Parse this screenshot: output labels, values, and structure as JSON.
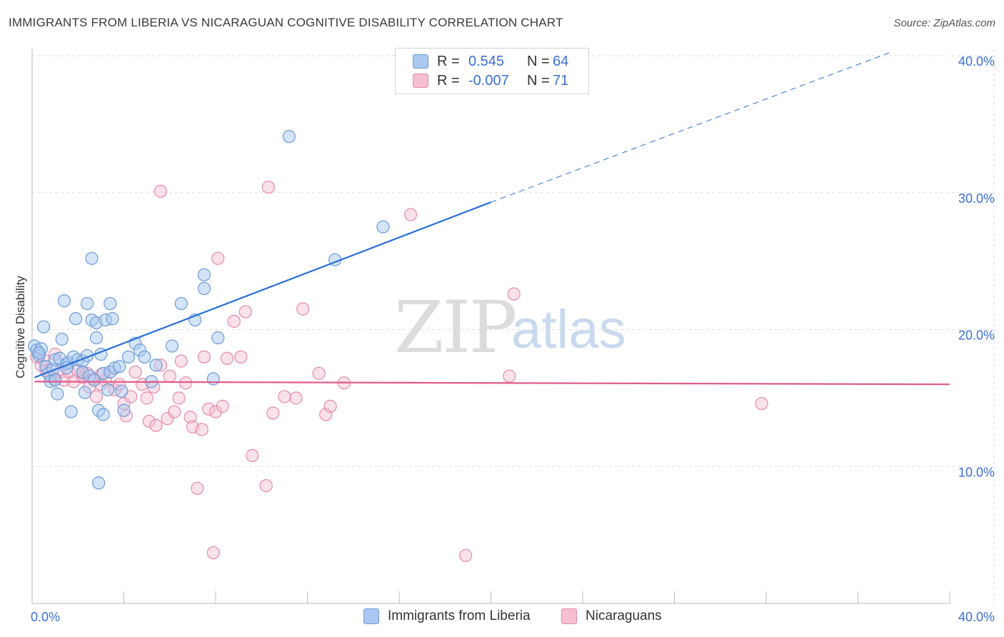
{
  "title": "IMMIGRANTS FROM LIBERIA VS NICARAGUAN COGNITIVE DISABILITY CORRELATION CHART",
  "source": "Source: ZipAtlas.com",
  "watermark": {
    "zip": "ZIP",
    "atlas": "atlas"
  },
  "colors": {
    "blue_fill": "#aac9f0",
    "blue_stroke": "#6b9bd8",
    "blue_line": "#2a6fd6",
    "pink_fill": "#f5bfd0",
    "pink_stroke": "#e68aa8",
    "pink_line": "#e05c8a",
    "grid": "#dddddd",
    "axis_label": "#3b6fd4"
  },
  "legend": {
    "series1": {
      "r_label": "R =",
      "r_value": "0.545",
      "n_label": "N =",
      "n_value": "64"
    },
    "series2": {
      "r_label": "R =",
      "r_value": "-0.007",
      "n_label": "N =",
      "n_value": "71"
    }
  },
  "bottom_legend": {
    "series1": "Immigrants from Liberia",
    "series2": "Nicaraguans"
  },
  "chart_data": {
    "type": "scatter",
    "title": "IMMIGRANTS FROM LIBERIA VS NICARAGUAN COGNITIVE DISABILITY CORRELATION CHART",
    "xlabel": "",
    "ylabel": "Cognitive Disability",
    "xlim": [
      0,
      40
    ],
    "ylim": [
      0,
      40
    ],
    "x_tick_labels": [
      "0.0%",
      "40.0%"
    ],
    "y_ticks": [
      {
        "value": 10,
        "label": "10.0%"
      },
      {
        "value": 20,
        "label": "20.0%"
      },
      {
        "value": 30,
        "label": "30.0%"
      },
      {
        "value": 40,
        "label": "40.0%"
      }
    ],
    "series": [
      {
        "name": "Immigrants from Liberia",
        "color": "blue",
        "trend": {
          "x": [
            0.1,
            20.0
          ],
          "y": [
            16.5,
            29.3
          ],
          "extend_to": [
            37.5,
            40.3
          ]
        },
        "points": [
          [
            0.1,
            18.8
          ],
          [
            0.2,
            18.5
          ],
          [
            0.3,
            18.1
          ],
          [
            0.4,
            18.6
          ],
          [
            0.5,
            20.2
          ],
          [
            0.6,
            17.3
          ],
          [
            0.7,
            16.8
          ],
          [
            0.8,
            16.2
          ],
          [
            0.9,
            17.1
          ],
          [
            1.0,
            17.8
          ],
          [
            1.1,
            15.3
          ],
          [
            1.2,
            17.9
          ],
          [
            1.3,
            19.3
          ],
          [
            1.4,
            22.1
          ],
          [
            1.5,
            17.5
          ],
          [
            1.6,
            17.6
          ],
          [
            1.5,
            17.2
          ],
          [
            1.7,
            14.0
          ],
          [
            1.8,
            18.0
          ],
          [
            1.9,
            20.8
          ],
          [
            2.0,
            17.8
          ],
          [
            2.2,
            17.7
          ],
          [
            2.3,
            15.4
          ],
          [
            2.4,
            18.1
          ],
          [
            2.2,
            16.9
          ],
          [
            2.4,
            21.9
          ],
          [
            2.5,
            16.6
          ],
          [
            2.6,
            20.7
          ],
          [
            2.6,
            25.2
          ],
          [
            2.7,
            16.3
          ],
          [
            2.8,
            20.5
          ],
          [
            2.8,
            19.4
          ],
          [
            2.9,
            14.1
          ],
          [
            3.0,
            18.2
          ],
          [
            3.1,
            16.8
          ],
          [
            3.2,
            20.7
          ],
          [
            3.1,
            13.8
          ],
          [
            3.3,
            15.6
          ],
          [
            3.4,
            16.9
          ],
          [
            3.4,
            21.9
          ],
          [
            3.5,
            20.8
          ],
          [
            3.6,
            17.2
          ],
          [
            3.8,
            17.3
          ],
          [
            3.9,
            15.5
          ],
          [
            4.0,
            14.1
          ],
          [
            4.2,
            18.0
          ],
          [
            4.5,
            19.0
          ],
          [
            4.7,
            18.5
          ],
          [
            4.9,
            18.0
          ],
          [
            5.2,
            16.2
          ],
          [
            5.4,
            17.4
          ],
          [
            6.1,
            18.8
          ],
          [
            6.5,
            21.9
          ],
          [
            7.1,
            20.7
          ],
          [
            7.5,
            24.0
          ],
          [
            7.5,
            23.0
          ],
          [
            7.9,
            16.4
          ],
          [
            8.1,
            19.4
          ],
          [
            11.2,
            34.1
          ],
          [
            13.2,
            25.1
          ],
          [
            15.3,
            27.5
          ],
          [
            2.9,
            8.8
          ],
          [
            0.3,
            18.3
          ],
          [
            1.0,
            16.3
          ]
        ]
      },
      {
        "name": "Nicaraguans",
        "color": "pink",
        "trend": {
          "x": [
            0.1,
            40.0
          ],
          "y": [
            16.2,
            16.0
          ]
        },
        "points": [
          [
            0.2,
            18.0
          ],
          [
            0.4,
            17.4
          ],
          [
            0.6,
            17.0
          ],
          [
            0.8,
            16.6
          ],
          [
            1.0,
            18.2
          ],
          [
            1.2,
            16.9
          ],
          [
            1.4,
            16.3
          ],
          [
            1.6,
            16.9
          ],
          [
            1.8,
            16.2
          ],
          [
            2.0,
            17.0
          ],
          [
            2.2,
            16.5
          ],
          [
            2.4,
            16.8
          ],
          [
            2.5,
            15.8
          ],
          [
            2.7,
            16.4
          ],
          [
            2.8,
            15.1
          ],
          [
            3.0,
            16.7
          ],
          [
            3.2,
            16.3
          ],
          [
            3.4,
            16.9
          ],
          [
            3.6,
            15.6
          ],
          [
            3.8,
            16.0
          ],
          [
            4.0,
            14.6
          ],
          [
            4.1,
            13.7
          ],
          [
            4.3,
            15.1
          ],
          [
            4.5,
            16.9
          ],
          [
            4.8,
            16.0
          ],
          [
            5.0,
            15.0
          ],
          [
            5.1,
            13.3
          ],
          [
            5.3,
            15.8
          ],
          [
            5.4,
            13.0
          ],
          [
            5.6,
            17.4
          ],
          [
            5.9,
            13.5
          ],
          [
            6.0,
            16.6
          ],
          [
            6.2,
            14.0
          ],
          [
            6.4,
            15.0
          ],
          [
            6.5,
            17.7
          ],
          [
            6.7,
            16.1
          ],
          [
            6.9,
            13.6
          ],
          [
            7.0,
            12.9
          ],
          [
            7.2,
            8.4
          ],
          [
            7.4,
            12.7
          ],
          [
            7.5,
            18.0
          ],
          [
            7.7,
            14.2
          ],
          [
            7.9,
            3.7
          ],
          [
            8.0,
            14.0
          ],
          [
            8.3,
            14.4
          ],
          [
            8.1,
            25.2
          ],
          [
            8.5,
            17.9
          ],
          [
            8.8,
            20.6
          ],
          [
            9.1,
            18.0
          ],
          [
            9.3,
            21.3
          ],
          [
            9.6,
            10.8
          ],
          [
            10.2,
            8.6
          ],
          [
            10.5,
            13.9
          ],
          [
            11.0,
            15.1
          ],
          [
            11.5,
            15.0
          ],
          [
            11.8,
            21.5
          ],
          [
            12.5,
            16.8
          ],
          [
            12.8,
            13.8
          ],
          [
            13.0,
            14.4
          ],
          [
            13.6,
            16.1
          ],
          [
            5.6,
            30.1
          ],
          [
            10.3,
            30.4
          ],
          [
            16.5,
            28.4
          ],
          [
            18.9,
            3.5
          ],
          [
            20.8,
            16.6
          ],
          [
            21.0,
            22.6
          ],
          [
            31.8,
            14.6
          ],
          [
            1.0,
            16.4
          ],
          [
            2.2,
            16.8
          ],
          [
            3.0,
            16.0
          ],
          [
            0.5,
            17.8
          ]
        ]
      }
    ]
  }
}
